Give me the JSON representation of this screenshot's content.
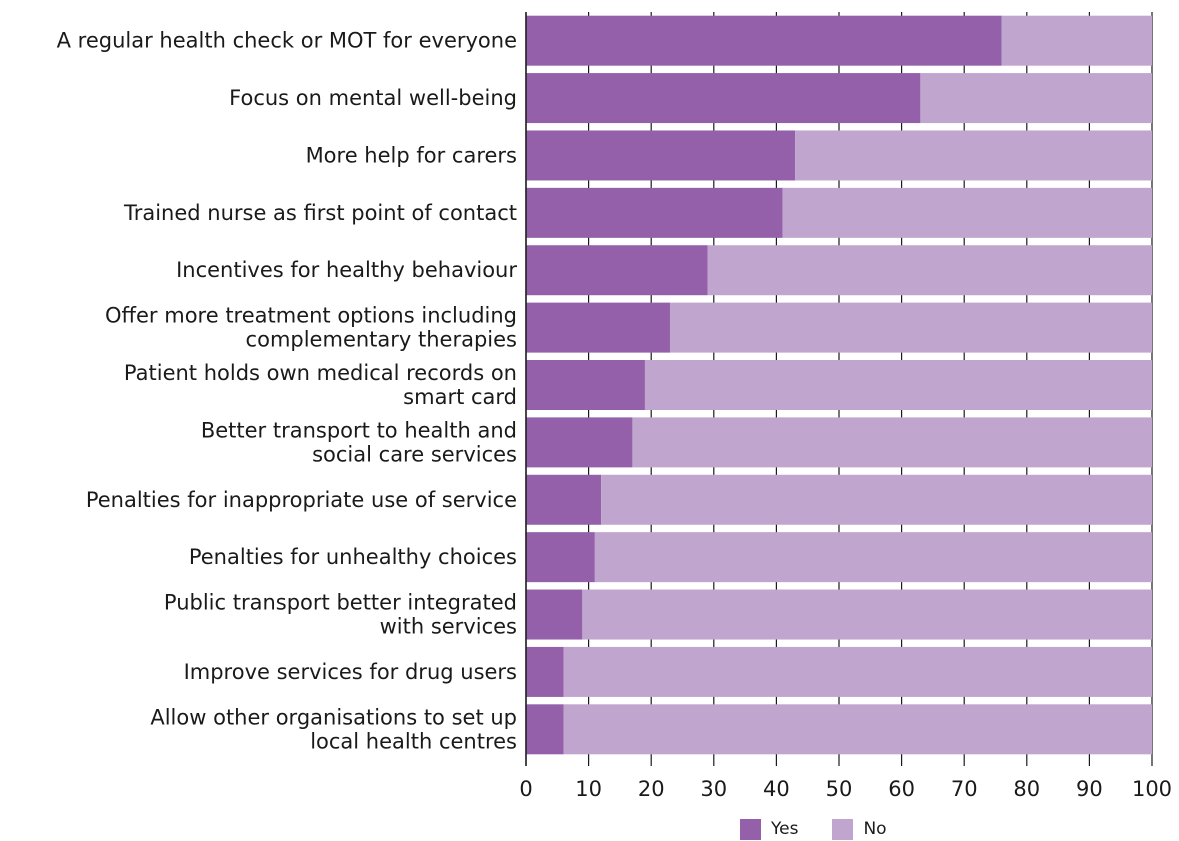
{
  "chart_data": {
    "type": "bar",
    "orientation": "horizontal",
    "stacked": true,
    "categories": [
      [
        "A regular health check or MOT for everyone"
      ],
      [
        "Focus on mental well-being"
      ],
      [
        "More help for carers"
      ],
      [
        "Trained nurse as first point of contact"
      ],
      [
        "Incentives for healthy behaviour"
      ],
      [
        "Offer more treatment options including",
        "complementary therapies"
      ],
      [
        "Patient holds own medical records on",
        "smart card"
      ],
      [
        "Better transport to health and",
        "social care services"
      ],
      [
        "Penalties for inappropriate use of service"
      ],
      [
        "Penalties for unhealthy choices"
      ],
      [
        "Public transport better integrated",
        "with services"
      ],
      [
        "Improve services for drug users"
      ],
      [
        "Allow other organisations to set up",
        "local health centres"
      ]
    ],
    "series": [
      {
        "name": "Yes",
        "color": "#9460a9",
        "values": [
          76,
          63,
          43,
          41,
          29,
          23,
          19,
          17,
          12,
          11,
          9,
          6,
          6
        ]
      },
      {
        "name": "No",
        "color": "#c0a5cf",
        "values": [
          24,
          37,
          57,
          59,
          71,
          77,
          81,
          83,
          88,
          89,
          91,
          94,
          94
        ]
      }
    ],
    "xlim": [
      0,
      100
    ],
    "xticks": [
      0,
      10,
      20,
      30,
      40,
      50,
      60,
      70,
      80,
      90,
      100
    ],
    "grid": "vertical tick marks between bars",
    "legend_position": "bottom"
  }
}
